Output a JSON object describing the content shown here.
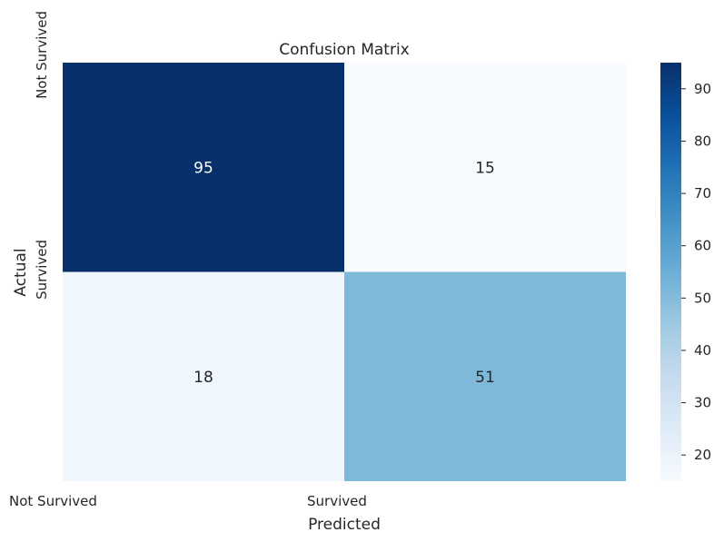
{
  "chart_data": {
    "type": "heatmap",
    "title": "Confusion Matrix",
    "xlabel": "Predicted",
    "ylabel": "Actual",
    "x_categories": [
      "Not Survived",
      "Survived"
    ],
    "y_categories": [
      "Not Survived",
      "Survived"
    ],
    "values": [
      [
        95,
        15
      ],
      [
        18,
        51
      ]
    ],
    "colormap": "Blues",
    "colorbar": {
      "range": [
        15,
        95
      ],
      "ticks": [
        20,
        30,
        40,
        50,
        60,
        70,
        80,
        90
      ]
    },
    "grid": false
  },
  "colors": {
    "low": "#f7fbff",
    "high": "#08306b",
    "text_dark": "#262626",
    "text_light": "#ffffff"
  }
}
